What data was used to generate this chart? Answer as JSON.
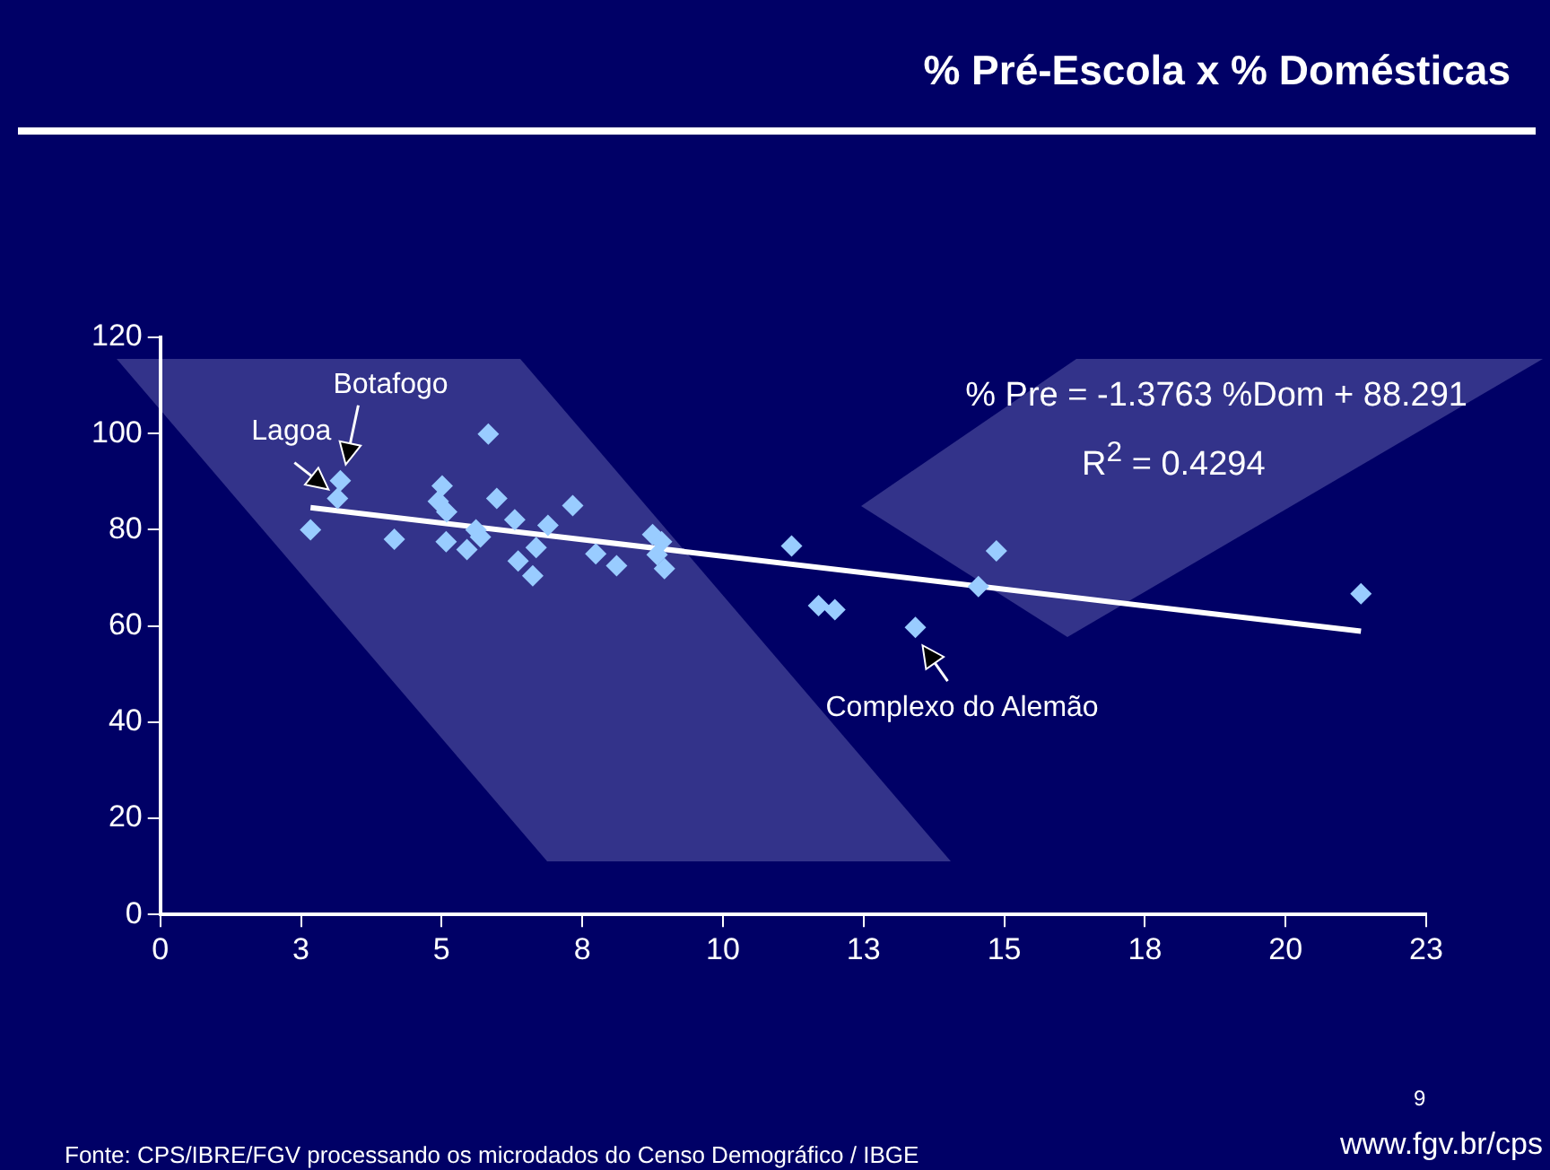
{
  "chart_data": {
    "type": "scatter",
    "title": "% Pré-Escola x % Domésticas",
    "x": [
      2.67,
      3.2,
      3.15,
      5.83,
      4.16,
      5.01,
      4.94,
      5.09,
      5.08,
      5.45,
      5.98,
      5.69,
      5.61,
      6.3,
      6.36,
      6.68,
      6.62,
      6.89,
      7.33,
      7.74,
      8.11,
      8.75,
      8.91,
      8.83,
      8.96,
      11.22,
      11.7,
      11.99,
      13.42,
      14.54,
      14.86,
      21.34
    ],
    "series": [
      {
        "color": "#99ccff",
        "marker": "diamond",
        "values": [
          80,
          90.2,
          86.5,
          99.9,
          78,
          89.1,
          85.9,
          83.7,
          77.5,
          75.9,
          86.5,
          78.5,
          80,
          82.1,
          73.5,
          76.3,
          70.4,
          80.9,
          85,
          75,
          72.5,
          79,
          77.5,
          74.8,
          71.9,
          76.6,
          64.2,
          63.4,
          59.7,
          68.2,
          75.6,
          66.7
        ]
      },
      {
        "type": "line",
        "color": "#ffffff",
        "marker": "none",
        "x": [
          2.67,
          21.34
        ],
        "values": [
          84.6,
          58.9
        ]
      }
    ],
    "xlim": [
      0,
      22.5
    ],
    "xticks": [
      0,
      {
        "value": 2.5,
        "label": "3"
      },
      5,
      {
        "value": 7.5,
        "label": "8"
      },
      10,
      {
        "value": 12.5,
        "label": "13"
      },
      15,
      {
        "value": 17.5,
        "label": "18"
      },
      20,
      {
        "value": 22.5,
        "label": "23"
      }
    ],
    "ylim": [
      0,
      120
    ],
    "yticks": [
      0,
      20,
      40,
      60,
      80,
      100,
      120
    ],
    "grid": false,
    "legend": false,
    "annotations": [
      "% Pre = -1.3763 %Dom + 88.291",
      "R$^{2}$ = 0.4294",
      "Fonte: CPS/IBRE/FGV processando os microdados do Censo Demográfico / IBGE",
      "www.fgv.br/cps",
      "9",
      {
        "text": "Lagoa",
        "x": 3.15,
        "y": 86.5
      },
      {
        "text": "Botafogo",
        "x": 3.2,
        "y": 90.2
      },
      {
        "text": "Complexo do Alemão",
        "x": 13.42,
        "y": 59.7
      }
    ]
  }
}
